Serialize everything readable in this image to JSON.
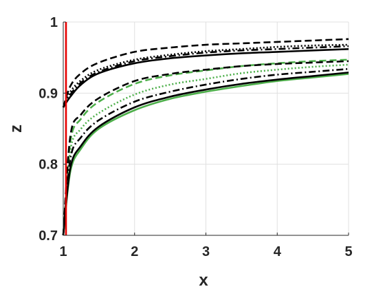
{
  "chart_data": {
    "type": "line",
    "xlabel": "x",
    "ylabel": "z",
    "xlim": [
      1,
      5
    ],
    "ylim": [
      0.7,
      1.0
    ],
    "xticks": [
      1,
      2,
      3,
      4,
      5
    ],
    "yticks": [
      0.7,
      0.8,
      0.9,
      1.0
    ],
    "xtick_labels": [
      "1",
      "2",
      "3",
      "4",
      "5"
    ],
    "ytick_labels": [
      "0.7",
      "0.8",
      "0.9",
      "1"
    ],
    "grid": true,
    "x": [
      1.0,
      1.1,
      1.25,
      1.5,
      2.0,
      2.5,
      3.0,
      3.5,
      4.0,
      4.5,
      5.0
    ],
    "vertical_line": {
      "x": 1.0,
      "color": "#e60000"
    },
    "series": [
      {
        "color": "#000000",
        "style": "dashed",
        "values": [
          0.88,
          0.91,
          0.928,
          0.943,
          0.958,
          0.964,
          0.968,
          0.97,
          0.972,
          0.974,
          0.976
        ]
      },
      {
        "color": "#000000",
        "style": "dotted",
        "values": [
          0.88,
          0.902,
          0.918,
          0.933,
          0.947,
          0.954,
          0.959,
          0.962,
          0.965,
          0.967,
          0.968
        ]
      },
      {
        "color": "#000000",
        "style": "dashdot",
        "values": [
          0.88,
          0.898,
          0.915,
          0.93,
          0.945,
          0.952,
          0.957,
          0.96,
          0.962,
          0.964,
          0.966
        ]
      },
      {
        "color": "#000000",
        "style": "solid",
        "values": [
          0.88,
          0.895,
          0.912,
          0.928,
          0.942,
          0.949,
          0.953,
          0.956,
          0.958,
          0.96,
          0.962
        ]
      },
      {
        "color": "#4daf4a",
        "style": "dashed",
        "values": [
          0.7,
          0.832,
          0.864,
          0.888,
          0.913,
          0.925,
          0.932,
          0.938,
          0.942,
          0.945,
          0.947
        ]
      },
      {
        "color": "#4daf4a",
        "style": "dotted",
        "values": [
          0.7,
          0.82,
          0.85,
          0.872,
          0.898,
          0.912,
          0.92,
          0.928,
          0.933,
          0.937,
          0.94
        ]
      },
      {
        "color": "#4daf4a",
        "style": "solid",
        "values": [
          0.7,
          0.79,
          0.822,
          0.85,
          0.876,
          0.892,
          0.902,
          0.91,
          0.917,
          0.922,
          0.927
        ]
      },
      {
        "color": "#000000",
        "style": "dashed",
        "values": [
          0.7,
          0.84,
          0.87,
          0.893,
          0.917,
          0.927,
          0.933,
          0.938,
          0.941,
          0.943,
          0.945
        ]
      },
      {
        "color": "#000000",
        "style": "dashdot",
        "values": [
          0.7,
          0.808,
          0.838,
          0.862,
          0.888,
          0.902,
          0.912,
          0.92,
          0.926,
          0.93,
          0.934
        ]
      },
      {
        "color": "#000000",
        "style": "solid",
        "values": [
          0.7,
          0.795,
          0.826,
          0.853,
          0.88,
          0.895,
          0.905,
          0.913,
          0.919,
          0.924,
          0.929
        ]
      }
    ]
  }
}
